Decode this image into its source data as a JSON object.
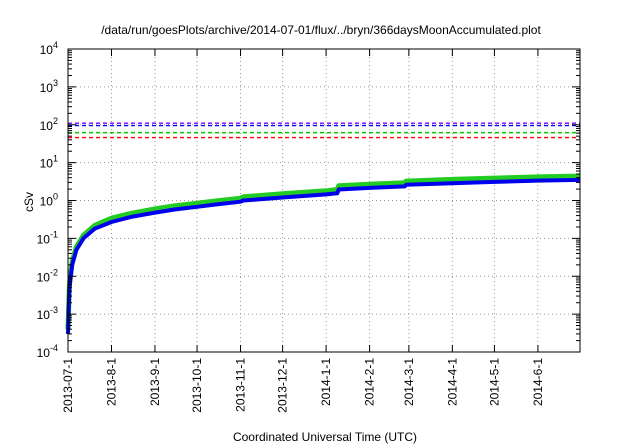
{
  "chart_data": {
    "type": "line",
    "title": "/data/run/goesPlots/archive/2014-07-01/flux/../bryn/366daysMoonAccumulated.plot",
    "xlabel": "Coordinated Universal Time (UTC)",
    "ylabel": "cSv",
    "yscale": "log",
    "ylim": [
      0.0001,
      10000
    ],
    "xlim": [
      "2013-07-01",
      "2014-07-01"
    ],
    "grid": true,
    "x_ticks": [
      "2013-07-1",
      "2013-8-1",
      "2013-9-1",
      "2013-10-1",
      "2013-11-1",
      "2013-12-1",
      "2014-1-1",
      "2014-2-1",
      "2014-3-1",
      "2014-4-1",
      "2014-5-1",
      "2014-6-1"
    ],
    "y_ticks": [
      {
        "value": 0.0001,
        "base": "10",
        "exp": "-4"
      },
      {
        "value": 0.001,
        "base": "10",
        "exp": "-3"
      },
      {
        "value": 0.01,
        "base": "10",
        "exp": "-2"
      },
      {
        "value": 0.1,
        "base": "10",
        "exp": "-1"
      },
      {
        "value": 1,
        "base": "10",
        "exp": "0"
      },
      {
        "value": 10,
        "base": "10",
        "exp": "1"
      },
      {
        "value": 100,
        "base": "10",
        "exp": "2"
      },
      {
        "value": 1000,
        "base": "10",
        "exp": "3"
      },
      {
        "value": 10000,
        "base": "10",
        "exp": "4"
      }
    ],
    "reference_lines": [
      {
        "value": 110,
        "color": "#8000ff",
        "style": "dashed"
      },
      {
        "value": 95,
        "color": "#0000ff",
        "style": "dashed"
      },
      {
        "value": 62,
        "color": "#00cc00",
        "style": "dashed"
      },
      {
        "value": 46,
        "color": "#ff0000",
        "style": "dashed"
      }
    ],
    "series": [
      {
        "color": "#22cc22",
        "width": 5,
        "x": [
          "2013-07-01",
          "2013-07-02",
          "2013-07-04",
          "2013-07-07",
          "2013-07-12",
          "2013-07-20",
          "2013-08-01",
          "2013-08-15",
          "2013-09-01",
          "2013-09-15",
          "2013-10-01",
          "2013-10-15",
          "2013-11-01",
          "2013-11-03",
          "2013-12-01",
          "2014-01-01",
          "2014-01-09",
          "2014-01-10",
          "2014-02-01",
          "2014-02-26",
          "2014-02-27",
          "2014-04-01",
          "2014-05-01",
          "2014-06-01",
          "2014-07-01"
        ],
        "y": [
          0.0004,
          0.006,
          0.025,
          0.06,
          0.12,
          0.22,
          0.34,
          0.46,
          0.6,
          0.72,
          0.85,
          0.98,
          1.15,
          1.25,
          1.5,
          1.8,
          1.95,
          2.45,
          2.7,
          2.95,
          3.25,
          3.6,
          3.9,
          4.2,
          4.4
        ]
      },
      {
        "color": "#0000ee",
        "width": 4,
        "x": [
          "2013-07-01",
          "2013-07-02",
          "2013-07-04",
          "2013-07-07",
          "2013-07-12",
          "2013-07-20",
          "2013-08-01",
          "2013-08-15",
          "2013-09-01",
          "2013-09-15",
          "2013-10-01",
          "2013-10-15",
          "2013-11-01",
          "2013-11-03",
          "2013-12-01",
          "2014-01-01",
          "2014-01-09",
          "2014-01-10",
          "2014-02-01",
          "2014-02-26",
          "2014-02-27",
          "2014-04-01",
          "2014-05-01",
          "2014-06-01",
          "2014-07-01"
        ],
        "y": [
          0.0003,
          0.005,
          0.02,
          0.05,
          0.1,
          0.18,
          0.27,
          0.37,
          0.48,
          0.58,
          0.68,
          0.79,
          0.93,
          1.0,
          1.2,
          1.45,
          1.55,
          1.95,
          2.15,
          2.35,
          2.6,
          2.85,
          3.1,
          3.35,
          3.5
        ]
      }
    ]
  }
}
